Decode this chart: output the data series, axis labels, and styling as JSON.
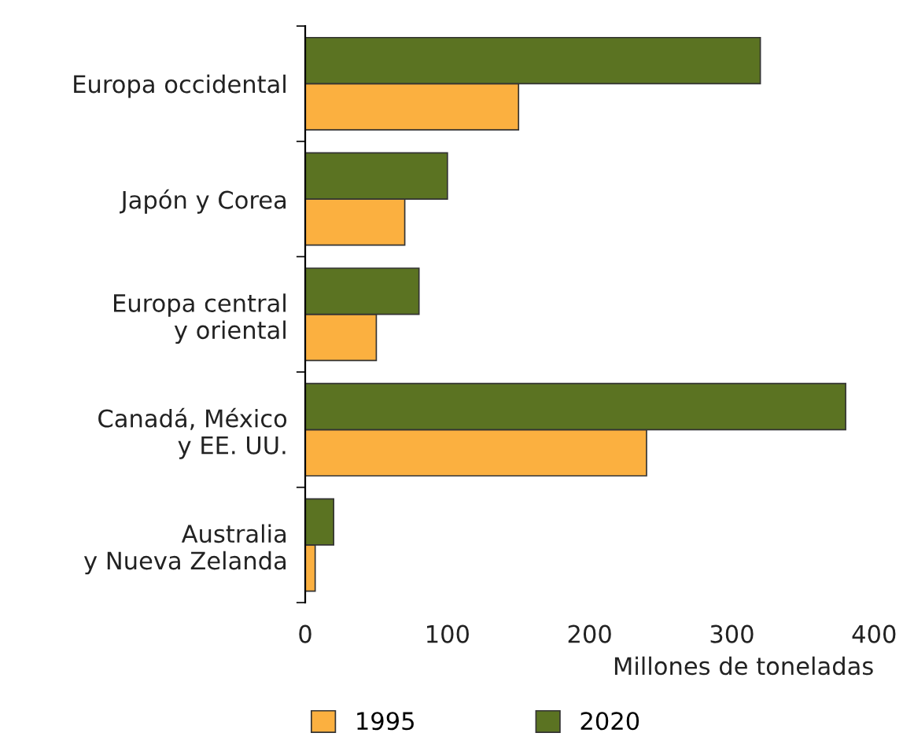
{
  "chart_data": {
    "type": "bar",
    "orientation": "horizontal",
    "categories": [
      "Europa occidental",
      "Japón y Corea",
      "Europa central\ny oriental",
      "Canadá, México\ny EE. UU.",
      "Australia\ny Nueva Zelanda"
    ],
    "series": [
      {
        "name": "1995",
        "color": "#fbb040",
        "values": [
          150,
          70,
          50,
          240,
          7
        ]
      },
      {
        "name": "2020",
        "color": "#5b7322",
        "values": [
          320,
          100,
          80,
          380,
          20
        ]
      }
    ],
    "xlim": [
      0,
      400
    ],
    "xticks": [
      0,
      100,
      200,
      300,
      400
    ],
    "xlabel": "Millones de toneladas",
    "legend": "bottom",
    "grid": false
  }
}
